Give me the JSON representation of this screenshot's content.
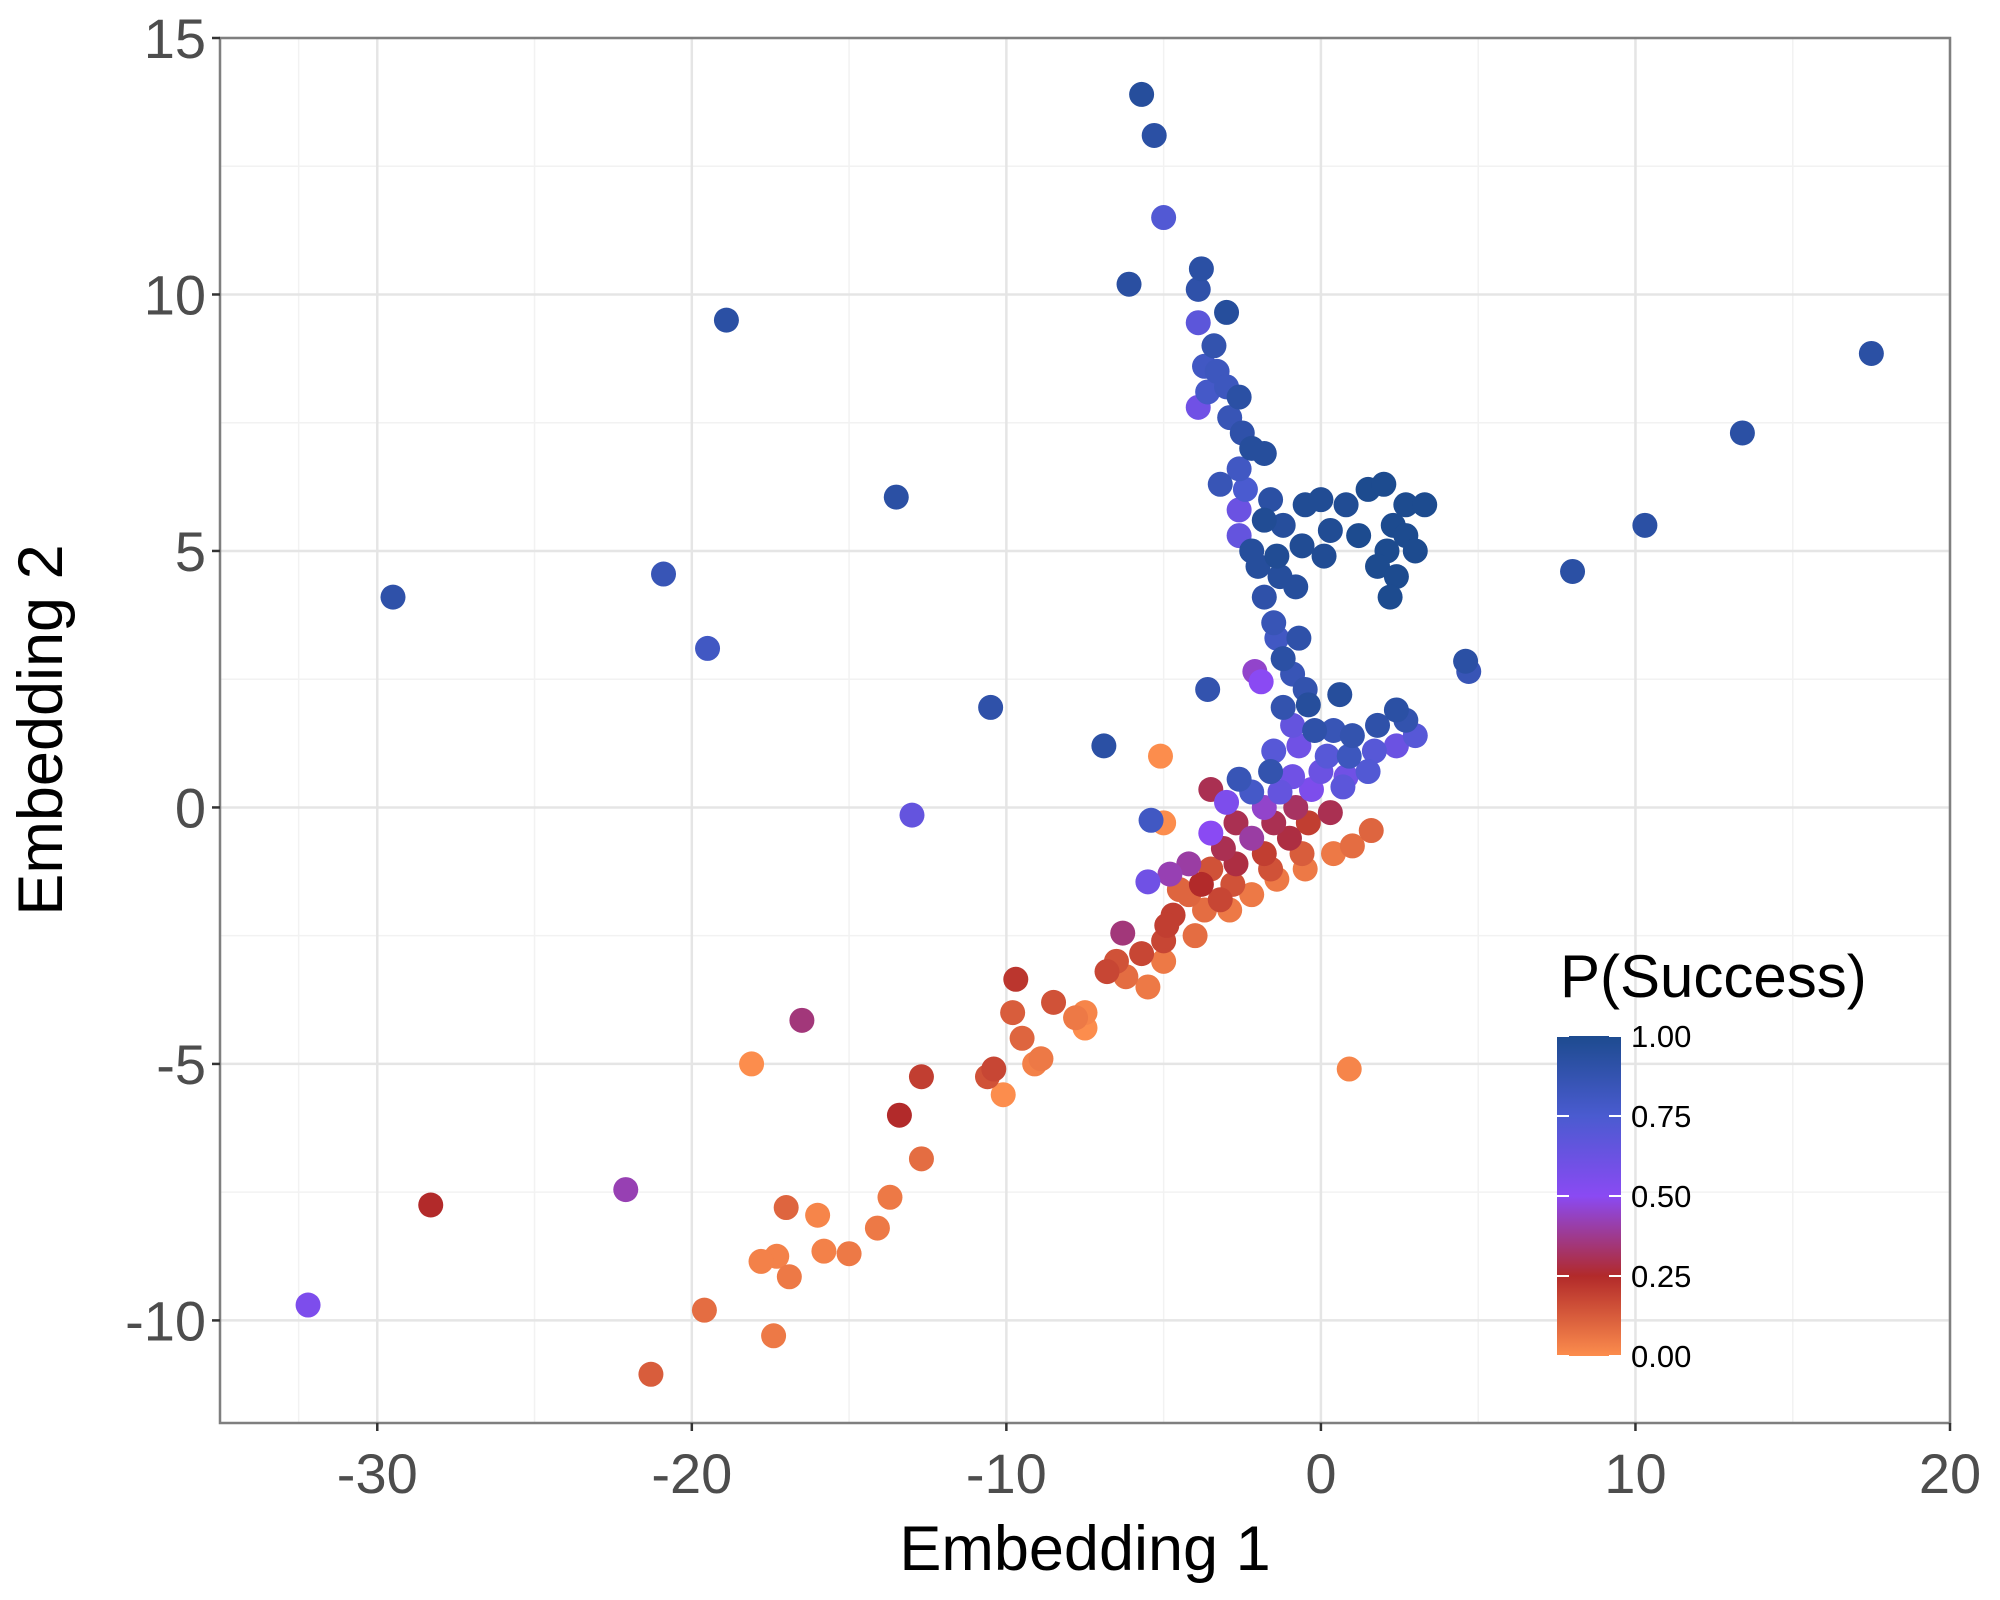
{
  "chart_data": {
    "type": "scatter",
    "title": "",
    "xlabel": "Embedding 1",
    "ylabel": "Embedding 2",
    "xlim": [
      -35,
      20
    ],
    "ylim": [
      -12,
      15
    ],
    "x_ticks": [
      -30,
      -20,
      -10,
      0,
      10,
      20
    ],
    "y_ticks": [
      -10,
      -5,
      0,
      5,
      10,
      15
    ],
    "grid": true,
    "legend": {
      "title": "P(Success)",
      "type": "colorbar",
      "placement": "bottom-right",
      "ticks": [
        "1.00",
        "0.75",
        "0.50",
        "0.25",
        "0.00"
      ],
      "ticks_values": [
        1.0,
        0.75,
        0.5,
        0.25,
        0.0
      ],
      "colors": [
        {
          "stop": 0.0,
          "color": "#fc8d4d"
        },
        {
          "stop": 0.25,
          "color": "#b22a2a"
        },
        {
          "stop": 0.5,
          "color": "#8a4af3"
        },
        {
          "stop": 0.75,
          "color": "#4a5bd0"
        },
        {
          "stop": 1.0,
          "color": "#1d4b8f"
        }
      ]
    },
    "series": [
      {
        "color_variable": "P(Success)",
        "points": [
          [
            -5.7,
            13.9,
            0.95
          ],
          [
            -5.3,
            13.1,
            0.92
          ],
          [
            -5.0,
            11.5,
            0.72
          ],
          [
            -3.8,
            10.5,
            0.92
          ],
          [
            -3.9,
            10.1,
            0.9
          ],
          [
            -6.1,
            10.2,
            0.93
          ],
          [
            -18.9,
            9.5,
            0.92
          ],
          [
            -3.0,
            9.65,
            0.95
          ],
          [
            -3.9,
            9.45,
            0.68
          ],
          [
            -3.4,
            9.0,
            0.88
          ],
          [
            -3.7,
            8.6,
            0.8
          ],
          [
            -3.3,
            8.5,
            0.82
          ],
          [
            -3.0,
            8.2,
            0.82
          ],
          [
            -3.6,
            8.1,
            0.78
          ],
          [
            -2.6,
            8.0,
            0.92
          ],
          [
            -3.9,
            7.8,
            0.6
          ],
          [
            -2.9,
            7.6,
            0.85
          ],
          [
            -2.5,
            7.3,
            0.9
          ],
          [
            -2.2,
            7.0,
            0.95
          ],
          [
            -1.8,
            6.9,
            0.95
          ],
          [
            -2.6,
            6.6,
            0.8
          ],
          [
            -3.2,
            6.3,
            0.85
          ],
          [
            -2.4,
            6.2,
            0.75
          ],
          [
            -1.6,
            6.0,
            0.92
          ],
          [
            -2.6,
            5.8,
            0.62
          ],
          [
            -1.8,
            5.6,
            0.98
          ],
          [
            -2.6,
            5.3,
            0.65
          ],
          [
            -1.2,
            5.5,
            0.95
          ],
          [
            -0.5,
            5.9,
            0.98
          ],
          [
            0.0,
            6.0,
            0.98
          ],
          [
            0.8,
            5.9,
            0.98
          ],
          [
            1.5,
            6.2,
            1.0
          ],
          [
            2.0,
            6.3,
            1.0
          ],
          [
            2.7,
            5.9,
            1.0
          ],
          [
            3.3,
            5.9,
            1.0
          ],
          [
            2.3,
            5.5,
            1.0
          ],
          [
            0.3,
            5.4,
            0.98
          ],
          [
            1.2,
            5.3,
            1.0
          ],
          [
            2.1,
            5.0,
            1.0
          ],
          [
            2.7,
            5.3,
            1.0
          ],
          [
            3.0,
            5.0,
            1.0
          ],
          [
            0.1,
            4.9,
            0.98
          ],
          [
            -0.6,
            5.1,
            0.98
          ],
          [
            -1.4,
            4.9,
            0.98
          ],
          [
            -2.2,
            5.0,
            0.95
          ],
          [
            -2.0,
            4.7,
            0.95
          ],
          [
            -1.3,
            4.5,
            0.95
          ],
          [
            -0.8,
            4.3,
            0.95
          ],
          [
            1.8,
            4.7,
            1.0
          ],
          [
            2.4,
            4.5,
            1.0
          ],
          [
            2.2,
            4.1,
            1.0
          ],
          [
            -1.8,
            4.1,
            0.9
          ],
          [
            -1.5,
            3.6,
            0.85
          ],
          [
            -1.4,
            3.3,
            0.8
          ],
          [
            -0.7,
            3.3,
            0.9
          ],
          [
            -1.2,
            2.9,
            0.92
          ],
          [
            -2.1,
            2.65,
            0.45
          ],
          [
            -1.9,
            2.45,
            0.5
          ],
          [
            -0.9,
            2.6,
            0.85
          ],
          [
            -0.5,
            2.3,
            0.88
          ],
          [
            0.6,
            2.2,
            0.95
          ],
          [
            -1.2,
            1.95,
            0.88
          ],
          [
            -0.4,
            2.0,
            0.95
          ],
          [
            -0.9,
            1.6,
            0.65
          ],
          [
            -0.2,
            1.5,
            0.9
          ],
          [
            0.4,
            1.5,
            0.85
          ],
          [
            1.0,
            1.4,
            0.88
          ],
          [
            1.8,
            1.6,
            0.9
          ],
          [
            2.4,
            1.9,
            0.92
          ],
          [
            2.7,
            1.7,
            0.88
          ],
          [
            3.0,
            1.4,
            0.7
          ],
          [
            -1.5,
            1.1,
            0.7
          ],
          [
            -0.7,
            1.2,
            0.6
          ],
          [
            0.2,
            1.0,
            0.7
          ],
          [
            0.9,
            1.0,
            0.82
          ],
          [
            1.7,
            1.1,
            0.7
          ],
          [
            2.4,
            1.2,
            0.62
          ],
          [
            -1.6,
            0.7,
            0.88
          ],
          [
            -0.9,
            0.6,
            0.6
          ],
          [
            0.0,
            0.7,
            0.62
          ],
          [
            0.8,
            0.6,
            0.6
          ],
          [
            1.5,
            0.7,
            0.72
          ],
          [
            -2.6,
            0.55,
            0.85
          ],
          [
            -2.2,
            0.3,
            0.78
          ],
          [
            -1.3,
            0.3,
            0.65
          ],
          [
            -0.3,
            0.35,
            0.55
          ],
          [
            0.7,
            0.4,
            0.68
          ],
          [
            -3.5,
            0.35,
            0.3
          ],
          [
            -3.0,
            0.1,
            0.55
          ],
          [
            -1.8,
            0.0,
            0.45
          ],
          [
            -0.8,
            0.0,
            0.32
          ],
          [
            0.3,
            -0.1,
            0.3
          ],
          [
            -2.7,
            -0.3,
            0.3
          ],
          [
            -1.5,
            -0.3,
            0.3
          ],
          [
            -0.4,
            -0.3,
            0.2
          ],
          [
            -3.5,
            -0.5,
            0.5
          ],
          [
            -2.2,
            -0.6,
            0.4
          ],
          [
            -1.0,
            -0.6,
            0.28
          ],
          [
            -3.1,
            -0.8,
            0.3
          ],
          [
            -1.8,
            -0.9,
            0.2
          ],
          [
            -0.6,
            -0.9,
            0.12
          ],
          [
            0.4,
            -0.9,
            0.05
          ],
          [
            -4.2,
            -1.1,
            0.4
          ],
          [
            -3.5,
            -1.2,
            0.15
          ],
          [
            -2.7,
            -1.1,
            0.28
          ],
          [
            -1.6,
            -1.2,
            0.15
          ],
          [
            -0.5,
            -1.2,
            0.05
          ],
          [
            -4.8,
            -1.3,
            0.42
          ],
          [
            -3.8,
            -1.5,
            0.25
          ],
          [
            -2.8,
            -1.5,
            0.15
          ],
          [
            -1.4,
            -1.4,
            0.05
          ],
          [
            -3.2,
            -1.8,
            0.18
          ],
          [
            -2.2,
            -1.7,
            0.05
          ],
          [
            -4.2,
            -1.7,
            0.1
          ],
          [
            -3.7,
            -2.0,
            0.08
          ],
          [
            -2.9,
            -2.0,
            0.05
          ],
          [
            -4.7,
            -2.1,
            0.2
          ],
          [
            -4.9,
            -2.3,
            0.2
          ],
          [
            -4.0,
            -2.5,
            0.08
          ],
          [
            -5.0,
            -2.6,
            0.18
          ],
          [
            -6.3,
            -2.45,
            0.35
          ],
          [
            -5.7,
            -2.85,
            0.18
          ],
          [
            -6.5,
            -3.0,
            0.15
          ],
          [
            -5.0,
            -3.0,
            0.05
          ],
          [
            -6.8,
            -3.2,
            0.18
          ],
          [
            -6.2,
            -3.3,
            0.08
          ],
          [
            -5.5,
            -3.5,
            0.05
          ],
          [
            -5.1,
            1.0,
            0.0
          ],
          [
            -5.5,
            -1.45,
            0.6
          ],
          [
            -4.5,
            -1.6,
            0.1
          ],
          [
            -5.4,
            -0.25,
            0.8
          ],
          [
            -5.0,
            -0.3,
            0.0
          ],
          [
            -6.9,
            1.2,
            0.92
          ],
          [
            -3.6,
            2.3,
            0.88
          ],
          [
            -10.5,
            1.95,
            0.9
          ],
          [
            -13.0,
            -0.15,
            0.65
          ],
          [
            -13.5,
            6.05,
            0.92
          ],
          [
            -20.9,
            4.55,
            0.85
          ],
          [
            -19.5,
            3.1,
            0.8
          ],
          [
            -29.5,
            4.1,
            0.9
          ],
          [
            -9.7,
            -3.35,
            0.22
          ],
          [
            -9.8,
            -4.0,
            0.12
          ],
          [
            -8.5,
            -3.8,
            0.15
          ],
          [
            -7.8,
            -4.1,
            0.05
          ],
          [
            -7.5,
            -4.0,
            0.02
          ],
          [
            -7.5,
            -4.3,
            0.0
          ],
          [
            -9.5,
            -4.5,
            0.1
          ],
          [
            -8.9,
            -4.9,
            0.05
          ],
          [
            -9.1,
            -5.0,
            0.03
          ],
          [
            -10.4,
            -5.1,
            0.18
          ],
          [
            -10.6,
            -5.25,
            0.15
          ],
          [
            -10.1,
            -5.6,
            0.0
          ],
          [
            -12.7,
            -5.25,
            0.2
          ],
          [
            -13.4,
            -6.0,
            0.25
          ],
          [
            -12.7,
            -6.85,
            0.08
          ],
          [
            -16.5,
            -4.15,
            0.35
          ],
          [
            -18.1,
            -5.0,
            0.0
          ],
          [
            -13.7,
            -7.6,
            0.05
          ],
          [
            -14.1,
            -8.2,
            0.05
          ],
          [
            -16.0,
            -7.95,
            0.02
          ],
          [
            -17.0,
            -7.8,
            0.1
          ],
          [
            -15.8,
            -8.65,
            0.03
          ],
          [
            -15.0,
            -8.7,
            0.05
          ],
          [
            -17.3,
            -8.75,
            0.03
          ],
          [
            -17.8,
            -8.85,
            0.03
          ],
          [
            -16.9,
            -9.15,
            0.05
          ],
          [
            -19.6,
            -9.8,
            0.08
          ],
          [
            -17.4,
            -10.3,
            0.05
          ],
          [
            -21.3,
            -11.05,
            0.12
          ],
          [
            -22.1,
            -7.45,
            0.42
          ],
          [
            -28.3,
            -7.75,
            0.25
          ],
          [
            -32.2,
            -9.7,
            0.55
          ],
          [
            4.6,
            2.85,
            0.92
          ],
          [
            4.7,
            2.65,
            0.85
          ],
          [
            8.0,
            4.6,
            0.92
          ],
          [
            10.3,
            5.5,
            0.92
          ],
          [
            13.4,
            7.3,
            0.92
          ],
          [
            17.5,
            8.85,
            0.92
          ],
          [
            0.9,
            -5.1,
            0.02
          ],
          [
            1.6,
            -0.45,
            0.1
          ],
          [
            1.0,
            -0.75,
            0.08
          ]
        ]
      }
    ]
  }
}
